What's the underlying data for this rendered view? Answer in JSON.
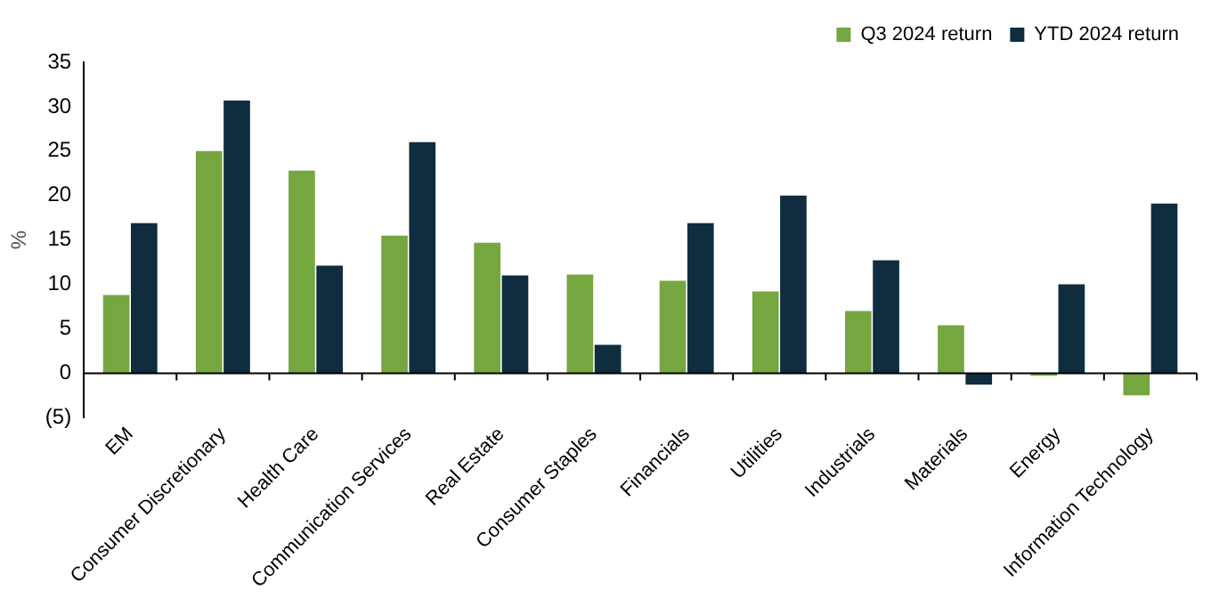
{
  "chart_data": {
    "type": "bar",
    "ylabel": "%",
    "categories": [
      "EM",
      "Consumer Discretionary",
      "Health Care",
      "Communication Services",
      "Real Estate",
      "Consumer Staples",
      "Financials",
      "Utilities",
      "Industrials",
      "Materials",
      "Energy",
      "Information Technology"
    ],
    "series": [
      {
        "name": "Q3 2024 return",
        "color": "#76a640",
        "values": [
          8.8,
          25.0,
          22.8,
          15.5,
          14.7,
          11.1,
          10.4,
          9.2,
          7.0,
          5.4,
          -0.3,
          -2.5
        ]
      },
      {
        "name": "YTD 2024 return",
        "color": "#0f2d3e",
        "values": [
          16.9,
          30.7,
          12.1,
          26.0,
          11.0,
          3.2,
          16.9,
          20.0,
          12.7,
          -1.3,
          10.0,
          19.1
        ]
      }
    ],
    "ylim": [
      -5,
      35
    ],
    "yticks": [
      {
        "value": -5,
        "label": "(5)"
      },
      0,
      5,
      10,
      15,
      20,
      25,
      30,
      35
    ],
    "grid": false,
    "legend": "top right"
  }
}
